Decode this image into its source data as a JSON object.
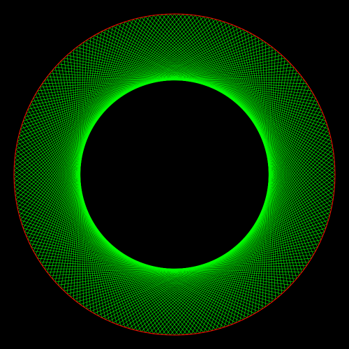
{
  "colors": {
    "background": "#000000",
    "outer_circle": "#ff0000",
    "chords": "#00ff00"
  },
  "pattern": {
    "chord_count": 240,
    "chord_step_fraction": 0.3
  }
}
